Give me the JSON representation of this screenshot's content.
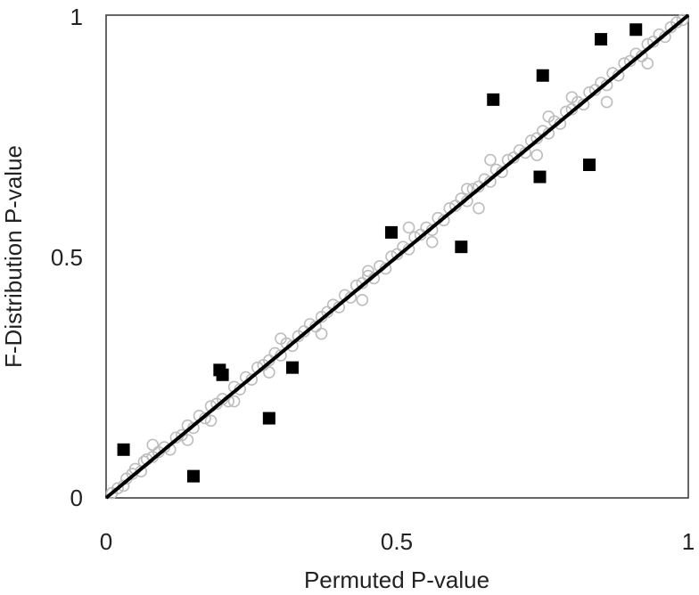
{
  "chart_data": {
    "type": "scatter",
    "title": "",
    "xlabel": "Permuted P-value",
    "ylabel": "F-Distribution P-value",
    "xlim": [
      0,
      1
    ],
    "ylim": [
      0,
      1
    ],
    "x_ticks": [
      "0",
      "0.5",
      "1"
    ],
    "y_ticks": [
      "0",
      "0.5",
      "1"
    ],
    "grid": false,
    "legend": "none",
    "reference_line": {
      "x": [
        0,
        1
      ],
      "y": [
        0,
        1
      ],
      "color": "#000000"
    },
    "series": [
      {
        "marker": "open-circle",
        "color": "#bdbdbd",
        "description_points": "dense cloud hugging the identity line",
        "points": [
          [
            0.01,
            0.01
          ],
          [
            0.02,
            0.02
          ],
          [
            0.03,
            0.025
          ],
          [
            0.035,
            0.04
          ],
          [
            0.045,
            0.05
          ],
          [
            0.05,
            0.06
          ],
          [
            0.06,
            0.055
          ],
          [
            0.065,
            0.075
          ],
          [
            0.07,
            0.08
          ],
          [
            0.08,
            0.085
          ],
          [
            0.09,
            0.095
          ],
          [
            0.1,
            0.105
          ],
          [
            0.11,
            0.1
          ],
          [
            0.12,
            0.125
          ],
          [
            0.13,
            0.13
          ],
          [
            0.14,
            0.15
          ],
          [
            0.15,
            0.145
          ],
          [
            0.16,
            0.17
          ],
          [
            0.17,
            0.165
          ],
          [
            0.18,
            0.19
          ],
          [
            0.19,
            0.195
          ],
          [
            0.2,
            0.205
          ],
          [
            0.21,
            0.2
          ],
          [
            0.22,
            0.23
          ],
          [
            0.23,
            0.225
          ],
          [
            0.24,
            0.25
          ],
          [
            0.25,
            0.245
          ],
          [
            0.26,
            0.27
          ],
          [
            0.27,
            0.275
          ],
          [
            0.28,
            0.285
          ],
          [
            0.29,
            0.3
          ],
          [
            0.3,
            0.295
          ],
          [
            0.31,
            0.32
          ],
          [
            0.32,
            0.315
          ],
          [
            0.33,
            0.335
          ],
          [
            0.34,
            0.345
          ],
          [
            0.35,
            0.36
          ],
          [
            0.36,
            0.355
          ],
          [
            0.37,
            0.375
          ],
          [
            0.38,
            0.385
          ],
          [
            0.39,
            0.4
          ],
          [
            0.4,
            0.395
          ],
          [
            0.41,
            0.42
          ],
          [
            0.42,
            0.415
          ],
          [
            0.43,
            0.44
          ],
          [
            0.44,
            0.445
          ],
          [
            0.45,
            0.46
          ],
          [
            0.46,
            0.455
          ],
          [
            0.47,
            0.48
          ],
          [
            0.48,
            0.475
          ],
          [
            0.49,
            0.5
          ],
          [
            0.5,
            0.505
          ],
          [
            0.51,
            0.52
          ],
          [
            0.52,
            0.515
          ],
          [
            0.53,
            0.54
          ],
          [
            0.54,
            0.545
          ],
          [
            0.55,
            0.56
          ],
          [
            0.56,
            0.555
          ],
          [
            0.57,
            0.58
          ],
          [
            0.58,
            0.575
          ],
          [
            0.59,
            0.6
          ],
          [
            0.6,
            0.605
          ],
          [
            0.61,
            0.62
          ],
          [
            0.62,
            0.615
          ],
          [
            0.63,
            0.64
          ],
          [
            0.64,
            0.645
          ],
          [
            0.65,
            0.66
          ],
          [
            0.66,
            0.655
          ],
          [
            0.67,
            0.68
          ],
          [
            0.68,
            0.675
          ],
          [
            0.69,
            0.7
          ],
          [
            0.7,
            0.705
          ],
          [
            0.71,
            0.72
          ],
          [
            0.72,
            0.715
          ],
          [
            0.73,
            0.74
          ],
          [
            0.74,
            0.745
          ],
          [
            0.75,
            0.76
          ],
          [
            0.76,
            0.755
          ],
          [
            0.77,
            0.78
          ],
          [
            0.78,
            0.775
          ],
          [
            0.79,
            0.8
          ],
          [
            0.8,
            0.805
          ],
          [
            0.81,
            0.82
          ],
          [
            0.82,
            0.815
          ],
          [
            0.83,
            0.84
          ],
          [
            0.84,
            0.845
          ],
          [
            0.85,
            0.86
          ],
          [
            0.86,
            0.855
          ],
          [
            0.87,
            0.88
          ],
          [
            0.88,
            0.875
          ],
          [
            0.89,
            0.9
          ],
          [
            0.9,
            0.905
          ],
          [
            0.91,
            0.92
          ],
          [
            0.92,
            0.915
          ],
          [
            0.93,
            0.94
          ],
          [
            0.94,
            0.945
          ],
          [
            0.95,
            0.96
          ],
          [
            0.96,
            0.955
          ],
          [
            0.97,
            0.975
          ],
          [
            0.98,
            0.985
          ],
          [
            0.99,
            0.99
          ],
          [
            0.08,
            0.11
          ],
          [
            0.14,
            0.12
          ],
          [
            0.22,
            0.2
          ],
          [
            0.3,
            0.33
          ],
          [
            0.37,
            0.34
          ],
          [
            0.44,
            0.41
          ],
          [
            0.52,
            0.56
          ],
          [
            0.56,
            0.53
          ],
          [
            0.64,
            0.6
          ],
          [
            0.66,
            0.7
          ],
          [
            0.74,
            0.71
          ],
          [
            0.8,
            0.83
          ],
          [
            0.86,
            0.82
          ],
          [
            0.93,
            0.9
          ],
          [
            0.62,
            0.64
          ],
          [
            0.45,
            0.47
          ],
          [
            0.28,
            0.26
          ],
          [
            0.18,
            0.16
          ],
          [
            0.76,
            0.79
          ]
        ]
      },
      {
        "marker": "filled-square",
        "color": "#000000",
        "points": [
          [
            0.03,
            0.1
          ],
          [
            0.15,
            0.045
          ],
          [
            0.195,
            0.265
          ],
          [
            0.2,
            0.255
          ],
          [
            0.28,
            0.165
          ],
          [
            0.32,
            0.27
          ],
          [
            0.49,
            0.55
          ],
          [
            0.61,
            0.52
          ],
          [
            0.665,
            0.825
          ],
          [
            0.745,
            0.665
          ],
          [
            0.75,
            0.875
          ],
          [
            0.83,
            0.69
          ],
          [
            0.85,
            0.95
          ],
          [
            0.91,
            0.97
          ]
        ]
      }
    ]
  }
}
